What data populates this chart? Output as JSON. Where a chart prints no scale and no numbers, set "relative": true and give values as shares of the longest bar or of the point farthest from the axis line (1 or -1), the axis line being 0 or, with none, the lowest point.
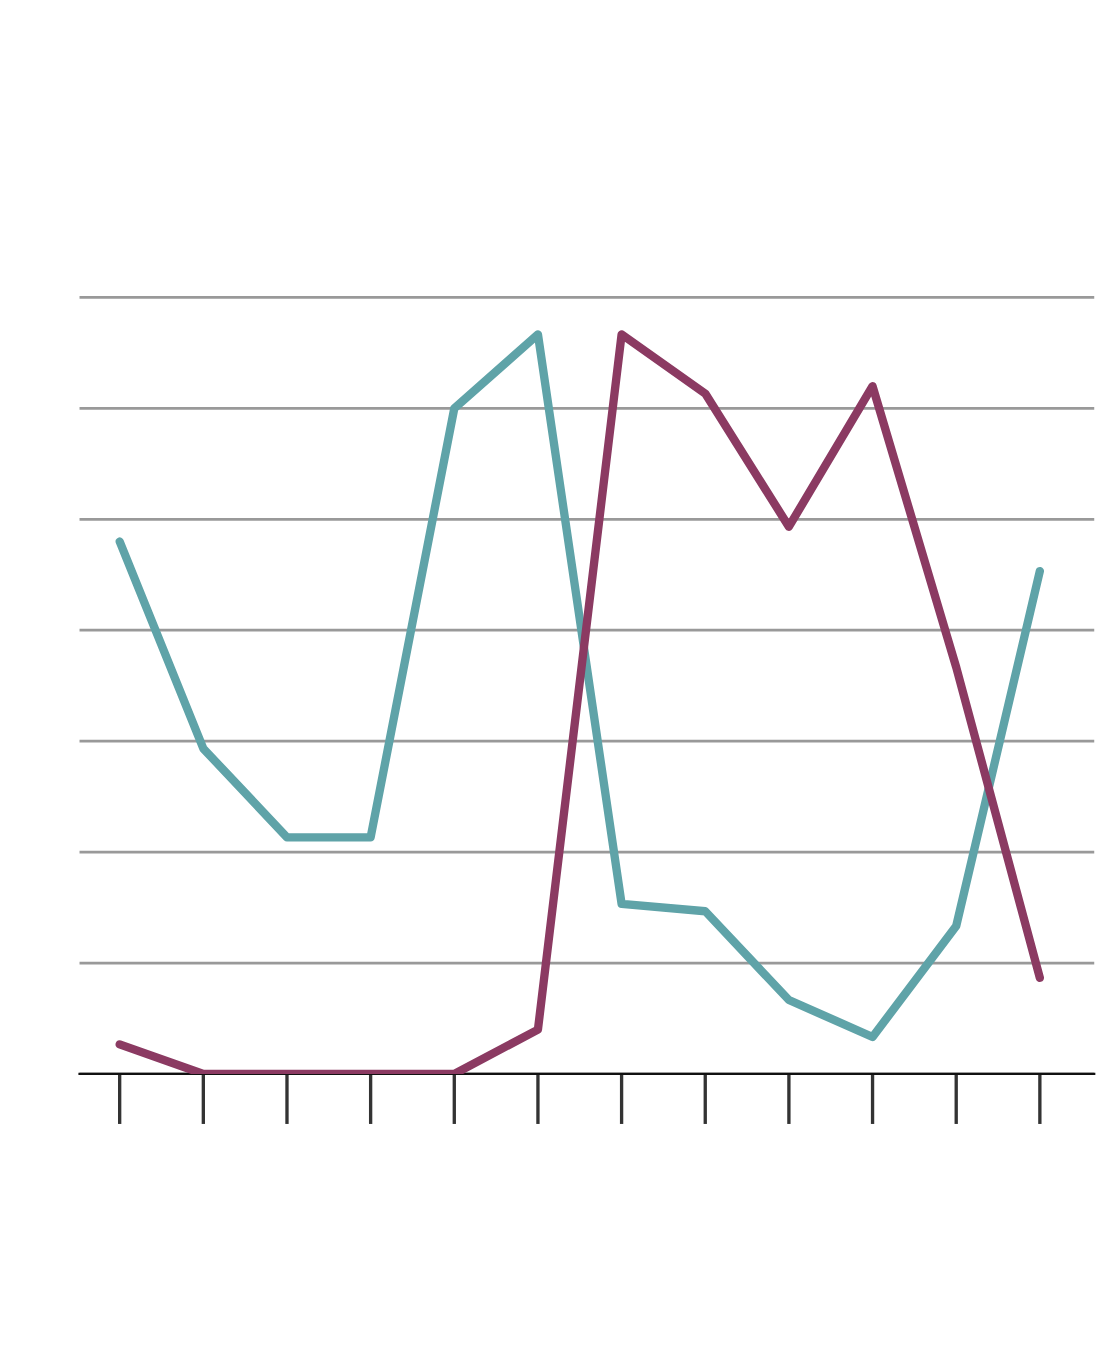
{
  "chart_data": {
    "type": "line",
    "relative": true,
    "grid": "y",
    "categories": [
      null,
      null,
      null,
      null,
      null,
      null,
      null,
      null,
      null,
      null,
      null,
      null
    ],
    "series": [
      {
        "color": "#5fa3a8",
        "values": [
          0.72,
          0.44,
          0.32,
          0.32,
          0.9,
          1.0,
          0.23,
          0.22,
          0.1,
          0.05,
          0.2,
          0.68
        ]
      },
      {
        "color": "#8b3a62",
        "values": [
          0.04,
          0.0,
          0.0,
          0.0,
          0.0,
          0.06,
          1.0,
          0.92,
          0.74,
          0.93,
          0.55,
          0.13
        ]
      }
    ]
  }
}
